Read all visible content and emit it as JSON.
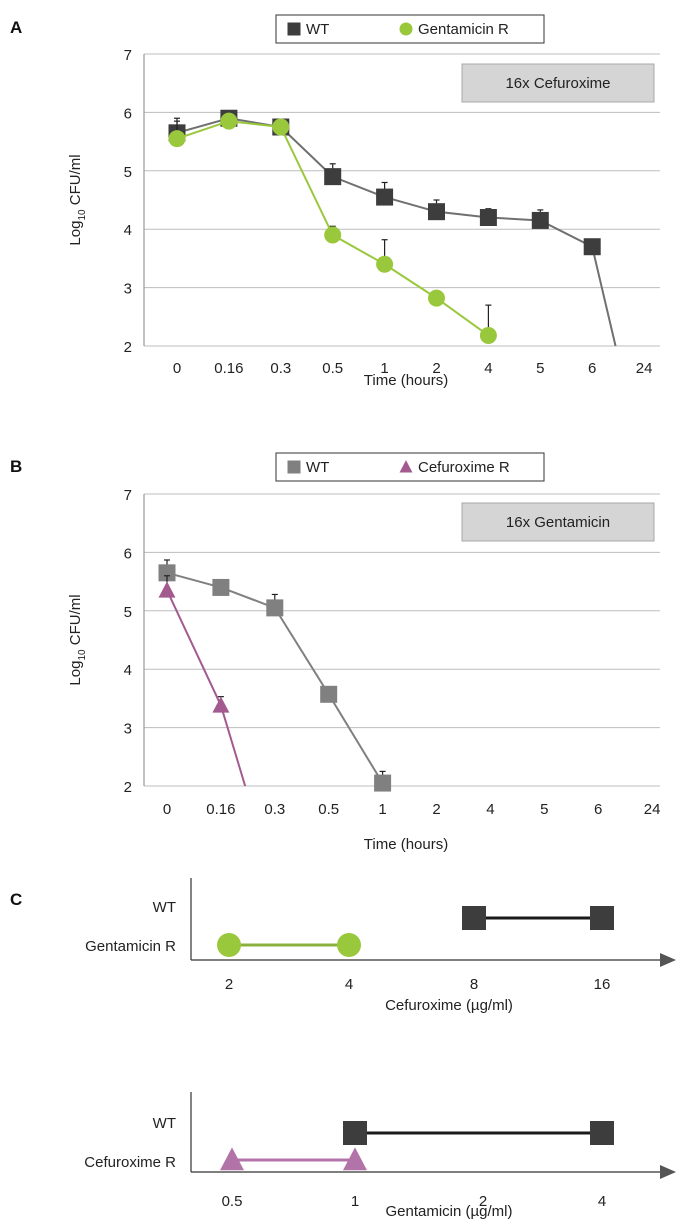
{
  "chart_data": [
    {
      "panel": "A",
      "type": "line",
      "condition": "16x Cefuroxime",
      "xlabel": "Time (hours)",
      "ylabel_main": "Log",
      "ylabel_sub": "10",
      "ylabel_rest": " CFU/ml",
      "x": [
        "0",
        "0.16",
        "0.3",
        "0.5",
        "1",
        "2",
        "4",
        "5",
        "6",
        "24"
      ],
      "ylim": [
        2,
        7
      ],
      "yticks": [
        "2",
        "3",
        "4",
        "5",
        "6",
        "7"
      ],
      "grid": true,
      "legend_position": "top",
      "series": [
        {
          "name": "WT",
          "color": "#3d3d3d",
          "line_color": "#707070",
          "marker": "square",
          "values": [
            5.65,
            5.9,
            5.75,
            4.9,
            4.55,
            4.3,
            4.2,
            4.15,
            3.7,
            null
          ],
          "err": [
            0.25,
            0.05,
            0.05,
            0.22,
            0.25,
            0.2,
            0.15,
            0.18,
            0.0,
            null
          ],
          "drop_to_min": true
        },
        {
          "name": "Gentamicin R",
          "color": "#9ac83c",
          "line_color": "#9ac83c",
          "marker": "circle",
          "values": [
            5.55,
            5.85,
            5.75,
            3.9,
            3.4,
            2.82,
            2.18,
            null,
            null,
            null
          ],
          "err": [
            0.3,
            0.05,
            0.05,
            0.15,
            0.42,
            0.0,
            0.52,
            null,
            null,
            null
          ],
          "drop_to_min": false
        }
      ]
    },
    {
      "panel": "B",
      "type": "line",
      "condition": "16x Gentamicin",
      "xlabel": "Time (hours)",
      "ylabel_main": "Log",
      "ylabel_sub": "10",
      "ylabel_rest": " CFU/ml",
      "x": [
        "0",
        "0.16",
        "0.3",
        "0.5",
        "1",
        "2",
        "4",
        "5",
        "6",
        "24"
      ],
      "ylim": [
        2,
        7
      ],
      "yticks": [
        "2",
        "3",
        "4",
        "5",
        "6",
        "7"
      ],
      "grid": true,
      "legend_position": "top",
      "series": [
        {
          "name": "WT",
          "color": "#808080",
          "line_color": "#808080",
          "marker": "square",
          "values": [
            5.65,
            5.4,
            5.05,
            3.57,
            2.05,
            null,
            null,
            null,
            null,
            null
          ],
          "err": [
            0.22,
            0.0,
            0.23,
            0.0,
            0.2,
            null,
            null,
            null,
            null,
            null
          ],
          "drop_to_min": false
        },
        {
          "name": "Cefuroxime R",
          "color": "#a35b8f",
          "line_color": "#a35b8f",
          "marker": "triangle",
          "values": [
            5.35,
            3.38,
            null,
            null,
            null,
            null,
            null,
            null,
            null,
            null
          ],
          "err": [
            0.25,
            0.15,
            null,
            null,
            null,
            null,
            null,
            null,
            null,
            null
          ],
          "drop_to_min": true
        }
      ]
    },
    {
      "panel": "C",
      "type": "range",
      "xlabel": "Cefuroxime (µg/ml)",
      "x": [
        "2",
        "4",
        "8",
        "16"
      ],
      "rows": [
        {
          "name": "WT",
          "color": "#3d3d3d",
          "line_color": "#1a1a1a",
          "marker": "square",
          "range": [
            "8",
            "16"
          ]
        },
        {
          "name": "Gentamicin R",
          "color": "#9ac83c",
          "line_color": "#8ab040",
          "marker": "circle",
          "range": [
            "2",
            "4"
          ]
        }
      ]
    },
    {
      "panel": "",
      "type": "range",
      "xlabel": "Gentamicin (µg/ml)",
      "x": [
        "0.5",
        "1",
        "2",
        "4"
      ],
      "rows": [
        {
          "name": "WT",
          "color": "#3d3d3d",
          "line_color": "#1a1a1a",
          "marker": "square",
          "range": [
            "1",
            "4"
          ]
        },
        {
          "name": "Cefuroxime R",
          "color": "#b274a8",
          "line_color": "#b274a8",
          "marker": "triangle",
          "range": [
            "0.5",
            "1"
          ]
        }
      ]
    }
  ]
}
